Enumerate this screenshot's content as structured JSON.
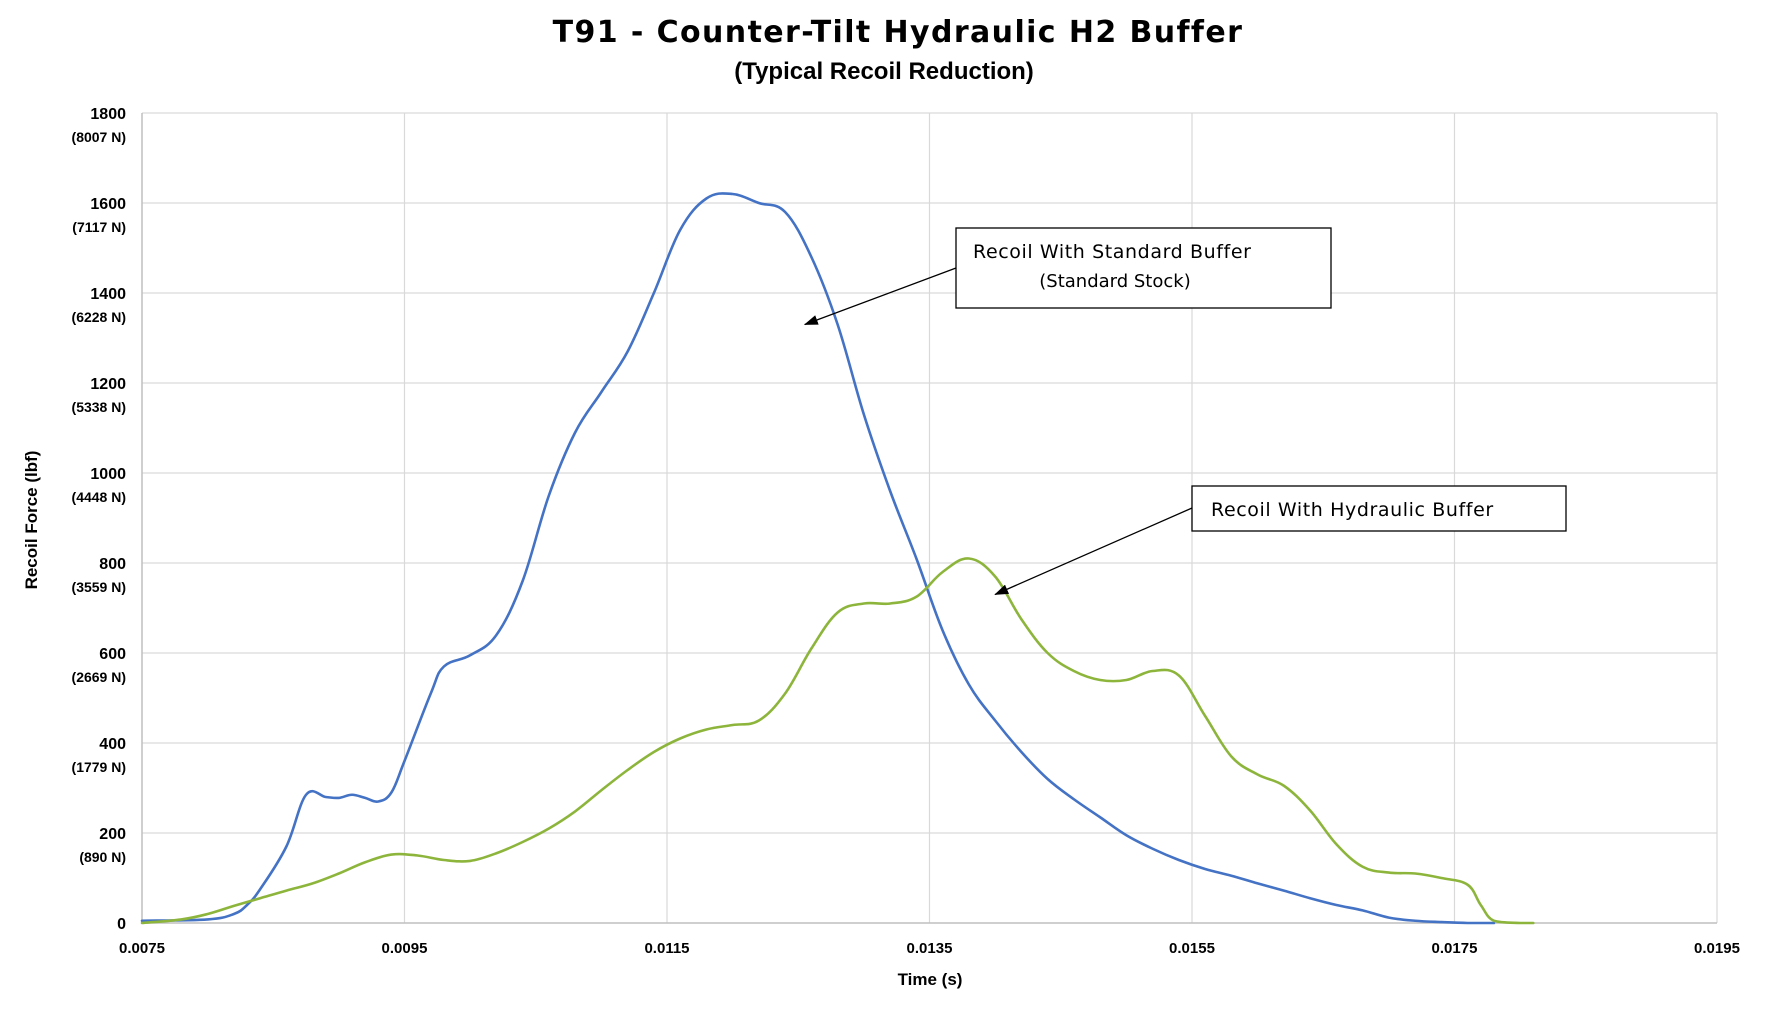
{
  "chart_data": {
    "type": "line",
    "title": "T91 - Counter-Tilt Hydraulic H2 Buffer",
    "subtitle": "(Typical Recoil Reduction)",
    "xlabel": "Time (s)",
    "ylabel": "Recoil Force (lbf)",
    "xlim": [
      0.0075,
      0.0195
    ],
    "ylim": [
      0,
      1800
    ],
    "grid": true,
    "x_ticks": [
      "0.0075",
      "0.0095",
      "0.0115",
      "0.0135",
      "0.0155",
      "0.0175",
      "0.0195"
    ],
    "y_ticks": [
      {
        "value": 0,
        "label": "0",
        "newtons": ""
      },
      {
        "value": 200,
        "label": "200",
        "newtons": "(890 N)"
      },
      {
        "value": 400,
        "label": "400",
        "newtons": "(1779 N)"
      },
      {
        "value": 600,
        "label": "600",
        "newtons": "(2669 N)"
      },
      {
        "value": 800,
        "label": "800",
        "newtons": "(3559 N)"
      },
      {
        "value": 1000,
        "label": "1000",
        "newtons": "(4448 N)"
      },
      {
        "value": 1200,
        "label": "1200",
        "newtons": "(5338 N)"
      },
      {
        "value": 1400,
        "label": "1400",
        "newtons": "(6228 N)"
      },
      {
        "value": 1600,
        "label": "1600",
        "newtons": "(7117 N)"
      },
      {
        "value": 1800,
        "label": "1800",
        "newtons": "(8007 N)"
      }
    ],
    "series": [
      {
        "color": "#4472C4",
        "points": [
          [
            0.0075,
            5
          ],
          [
            0.008,
            8
          ],
          [
            0.0082,
            20
          ],
          [
            0.0083,
            40
          ],
          [
            0.0084,
            75
          ],
          [
            0.0086,
            170
          ],
          [
            0.00875,
            285
          ],
          [
            0.0089,
            280
          ],
          [
            0.009,
            278
          ],
          [
            0.0091,
            285
          ],
          [
            0.0092,
            278
          ],
          [
            0.0093,
            270
          ],
          [
            0.0094,
            290
          ],
          [
            0.0095,
            360
          ],
          [
            0.0097,
            510
          ],
          [
            0.0098,
            570
          ],
          [
            0.01,
            595
          ],
          [
            0.0102,
            640
          ],
          [
            0.0104,
            760
          ],
          [
            0.0106,
            950
          ],
          [
            0.0108,
            1090
          ],
          [
            0.011,
            1180
          ],
          [
            0.0112,
            1270
          ],
          [
            0.0114,
            1400
          ],
          [
            0.0116,
            1540
          ],
          [
            0.0118,
            1610
          ],
          [
            0.012,
            1620
          ],
          [
            0.0122,
            1600
          ],
          [
            0.0124,
            1580
          ],
          [
            0.0126,
            1480
          ],
          [
            0.0128,
            1330
          ],
          [
            0.013,
            1130
          ],
          [
            0.0132,
            960
          ],
          [
            0.0134,
            810
          ],
          [
            0.0136,
            650
          ],
          [
            0.0138,
            530
          ],
          [
            0.014,
            450
          ],
          [
            0.0142,
            380
          ],
          [
            0.0144,
            320
          ],
          [
            0.0146,
            275
          ],
          [
            0.0148,
            235
          ],
          [
            0.015,
            195
          ],
          [
            0.0152,
            165
          ],
          [
            0.0154,
            140
          ],
          [
            0.0156,
            120
          ],
          [
            0.0158,
            105
          ],
          [
            0.016,
            88
          ],
          [
            0.0162,
            72
          ],
          [
            0.0164,
            55
          ],
          [
            0.0166,
            40
          ],
          [
            0.0168,
            28
          ],
          [
            0.017,
            12
          ],
          [
            0.0172,
            5
          ],
          [
            0.0174,
            2
          ],
          [
            0.0176,
            0
          ],
          [
            0.0178,
            0
          ]
        ]
      },
      {
        "color": "#8DB53C",
        "points": [
          [
            0.0075,
            0
          ],
          [
            0.0078,
            8
          ],
          [
            0.008,
            20
          ],
          [
            0.0082,
            38
          ],
          [
            0.0084,
            55
          ],
          [
            0.0086,
            72
          ],
          [
            0.0088,
            88
          ],
          [
            0.009,
            110
          ],
          [
            0.0092,
            135
          ],
          [
            0.0094,
            152
          ],
          [
            0.0096,
            150
          ],
          [
            0.0098,
            140
          ],
          [
            0.01,
            138
          ],
          [
            0.0102,
            155
          ],
          [
            0.0104,
            180
          ],
          [
            0.0106,
            210
          ],
          [
            0.0108,
            248
          ],
          [
            0.011,
            295
          ],
          [
            0.0112,
            340
          ],
          [
            0.0114,
            380
          ],
          [
            0.0116,
            410
          ],
          [
            0.0118,
            430
          ],
          [
            0.012,
            440
          ],
          [
            0.0122,
            450
          ],
          [
            0.0124,
            510
          ],
          [
            0.0126,
            610
          ],
          [
            0.0128,
            690
          ],
          [
            0.013,
            710
          ],
          [
            0.0132,
            710
          ],
          [
            0.0134,
            725
          ],
          [
            0.0136,
            780
          ],
          [
            0.0138,
            810
          ],
          [
            0.014,
            770
          ],
          [
            0.0142,
            675
          ],
          [
            0.0144,
            600
          ],
          [
            0.0146,
            560
          ],
          [
            0.0148,
            540
          ],
          [
            0.015,
            540
          ],
          [
            0.0152,
            560
          ],
          [
            0.0154,
            550
          ],
          [
            0.0156,
            460
          ],
          [
            0.0158,
            370
          ],
          [
            0.016,
            330
          ],
          [
            0.0162,
            305
          ],
          [
            0.0164,
            250
          ],
          [
            0.0166,
            175
          ],
          [
            0.0168,
            125
          ],
          [
            0.017,
            112
          ],
          [
            0.0172,
            110
          ],
          [
            0.0174,
            100
          ],
          [
            0.0176,
            85
          ],
          [
            0.0177,
            40
          ],
          [
            0.0178,
            5
          ],
          [
            0.018,
            0
          ],
          [
            0.0181,
            0
          ]
        ]
      }
    ],
    "annotations": [
      {
        "text": "Recoil With Standard Buffer",
        "subtext": "(Standard Stock)",
        "target": [
          0.01255,
          1330
        ]
      },
      {
        "text": "Recoil With Hydraulic Buffer",
        "subtext": "",
        "target": [
          0.014,
          730
        ]
      }
    ]
  }
}
